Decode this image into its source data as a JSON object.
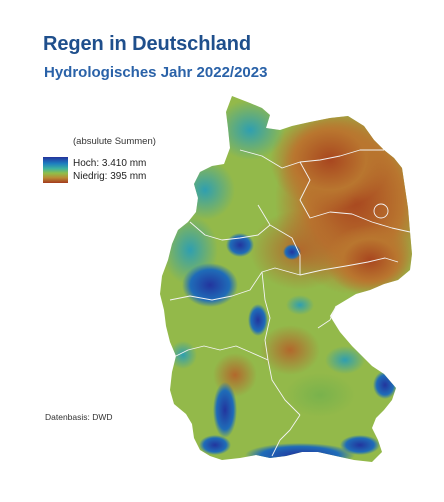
{
  "header": {
    "title": "Regen in Deutschland",
    "subtitle": "Hydrologisches Jahr 2022/2023"
  },
  "legend": {
    "caption": "(absulute Summen)",
    "high": "Hoch:  3.410 mm",
    "low": "Niedrig:  395 mm",
    "colors": [
      "#24329c",
      "#1d7ec0",
      "#3fb39e",
      "#8fbf4a",
      "#b98b35",
      "#a43a1e"
    ]
  },
  "source": "Datenbasis: DWD"
}
